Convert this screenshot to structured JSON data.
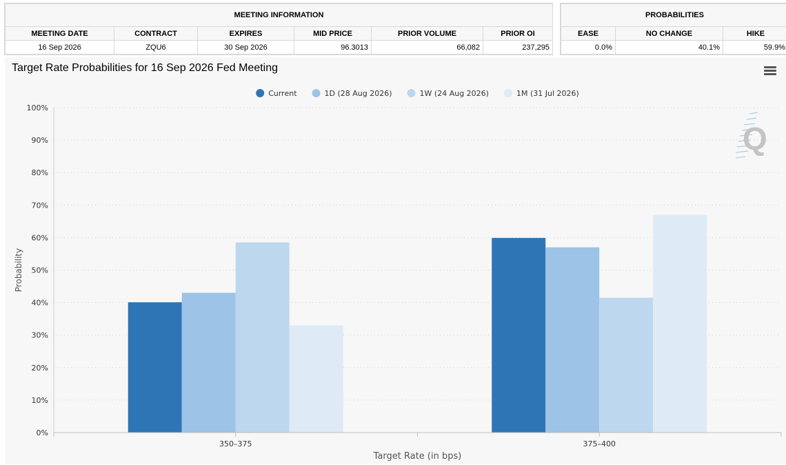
{
  "meeting_info": {
    "header": "MEETING INFORMATION",
    "columns": [
      "MEETING DATE",
      "CONTRACT",
      "EXPIRES",
      "MID PRICE",
      "PRIOR VOLUME",
      "PRIOR OI"
    ],
    "row": [
      "16 Sep 2026",
      "ZQU6",
      "30 Sep 2026",
      "96.3013",
      "66,082",
      "237,295"
    ]
  },
  "probabilities": {
    "header": "PROBABILITIES",
    "columns": [
      "EASE",
      "NO CHANGE",
      "HIKE"
    ],
    "row": [
      "0.0%",
      "40.1%",
      "59.9%"
    ]
  },
  "chart_data": {
    "type": "bar",
    "title": "Target Rate Probabilities for 16 Sep 2026 Fed Meeting",
    "xlabel": "Target Rate (in bps)",
    "ylabel": "Probability",
    "categories": [
      "350–375",
      "375–400"
    ],
    "ylim": [
      0,
      100
    ],
    "yticks": [
      0,
      10,
      20,
      30,
      40,
      50,
      60,
      70,
      80,
      90,
      100
    ],
    "y_tick_suffix": "%",
    "grid": true,
    "legend_position": "top-center",
    "series": [
      {
        "name": "Current",
        "color": "#2e75b6",
        "values": [
          40.1,
          59.9
        ]
      },
      {
        "name": "1D (28 Aug 2026)",
        "color": "#9dc3e6",
        "values": [
          43.0,
          57.0
        ]
      },
      {
        "name": "1W (24 Aug 2026)",
        "color": "#bdd7ee",
        "values": [
          58.5,
          41.5
        ]
      },
      {
        "name": "1M (31 Jul 2026)",
        "color": "#deebf7",
        "values": [
          33.0,
          67.0
        ]
      }
    ]
  },
  "icons": {
    "menu": "hamburger-menu-icon",
    "watermark": "q-logo-watermark"
  }
}
